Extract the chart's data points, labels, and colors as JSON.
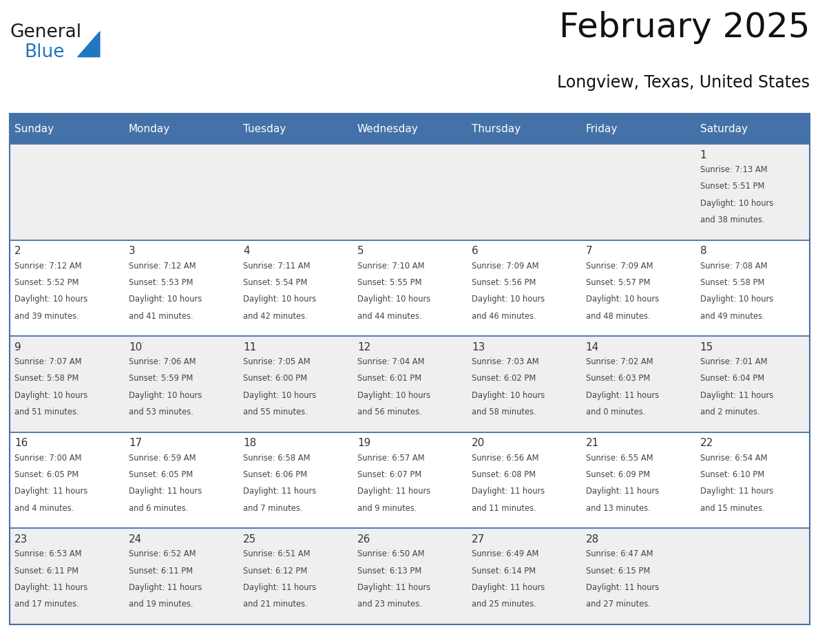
{
  "title": "February 2025",
  "subtitle": "Longview, Texas, United States",
  "header_color": "#4472a8",
  "header_text_color": "#ffffff",
  "day_names": [
    "Sunday",
    "Monday",
    "Tuesday",
    "Wednesday",
    "Thursday",
    "Friday",
    "Saturday"
  ],
  "row0_bg": "#efefef",
  "row1_bg": "#ffffff",
  "row2_bg": "#efefef",
  "row3_bg": "#ffffff",
  "row4_bg": "#efefef",
  "border_color": "#4472a8",
  "text_color": "#444444",
  "day_num_color": "#333333",
  "days": [
    {
      "day": 1,
      "col": 6,
      "row": 0,
      "sunrise": "7:13 AM",
      "sunset": "5:51 PM",
      "daylight_h": "10 hours",
      "daylight_m": "38 minutes."
    },
    {
      "day": 2,
      "col": 0,
      "row": 1,
      "sunrise": "7:12 AM",
      "sunset": "5:52 PM",
      "daylight_h": "10 hours",
      "daylight_m": "39 minutes."
    },
    {
      "day": 3,
      "col": 1,
      "row": 1,
      "sunrise": "7:12 AM",
      "sunset": "5:53 PM",
      "daylight_h": "10 hours",
      "daylight_m": "41 minutes."
    },
    {
      "day": 4,
      "col": 2,
      "row": 1,
      "sunrise": "7:11 AM",
      "sunset": "5:54 PM",
      "daylight_h": "10 hours",
      "daylight_m": "42 minutes."
    },
    {
      "day": 5,
      "col": 3,
      "row": 1,
      "sunrise": "7:10 AM",
      "sunset": "5:55 PM",
      "daylight_h": "10 hours",
      "daylight_m": "44 minutes."
    },
    {
      "day": 6,
      "col": 4,
      "row": 1,
      "sunrise": "7:09 AM",
      "sunset": "5:56 PM",
      "daylight_h": "10 hours",
      "daylight_m": "46 minutes."
    },
    {
      "day": 7,
      "col": 5,
      "row": 1,
      "sunrise": "7:09 AM",
      "sunset": "5:57 PM",
      "daylight_h": "10 hours",
      "daylight_m": "48 minutes."
    },
    {
      "day": 8,
      "col": 6,
      "row": 1,
      "sunrise": "7:08 AM",
      "sunset": "5:58 PM",
      "daylight_h": "10 hours",
      "daylight_m": "49 minutes."
    },
    {
      "day": 9,
      "col": 0,
      "row": 2,
      "sunrise": "7:07 AM",
      "sunset": "5:58 PM",
      "daylight_h": "10 hours",
      "daylight_m": "51 minutes."
    },
    {
      "day": 10,
      "col": 1,
      "row": 2,
      "sunrise": "7:06 AM",
      "sunset": "5:59 PM",
      "daylight_h": "10 hours",
      "daylight_m": "53 minutes."
    },
    {
      "day": 11,
      "col": 2,
      "row": 2,
      "sunrise": "7:05 AM",
      "sunset": "6:00 PM",
      "daylight_h": "10 hours",
      "daylight_m": "55 minutes."
    },
    {
      "day": 12,
      "col": 3,
      "row": 2,
      "sunrise": "7:04 AM",
      "sunset": "6:01 PM",
      "daylight_h": "10 hours",
      "daylight_m": "56 minutes."
    },
    {
      "day": 13,
      "col": 4,
      "row": 2,
      "sunrise": "7:03 AM",
      "sunset": "6:02 PM",
      "daylight_h": "10 hours",
      "daylight_m": "58 minutes."
    },
    {
      "day": 14,
      "col": 5,
      "row": 2,
      "sunrise": "7:02 AM",
      "sunset": "6:03 PM",
      "daylight_h": "11 hours",
      "daylight_m": "0 minutes."
    },
    {
      "day": 15,
      "col": 6,
      "row": 2,
      "sunrise": "7:01 AM",
      "sunset": "6:04 PM",
      "daylight_h": "11 hours",
      "daylight_m": "2 minutes."
    },
    {
      "day": 16,
      "col": 0,
      "row": 3,
      "sunrise": "7:00 AM",
      "sunset": "6:05 PM",
      "daylight_h": "11 hours",
      "daylight_m": "4 minutes."
    },
    {
      "day": 17,
      "col": 1,
      "row": 3,
      "sunrise": "6:59 AM",
      "sunset": "6:05 PM",
      "daylight_h": "11 hours",
      "daylight_m": "6 minutes."
    },
    {
      "day": 18,
      "col": 2,
      "row": 3,
      "sunrise": "6:58 AM",
      "sunset": "6:06 PM",
      "daylight_h": "11 hours",
      "daylight_m": "7 minutes."
    },
    {
      "day": 19,
      "col": 3,
      "row": 3,
      "sunrise": "6:57 AM",
      "sunset": "6:07 PM",
      "daylight_h": "11 hours",
      "daylight_m": "9 minutes."
    },
    {
      "day": 20,
      "col": 4,
      "row": 3,
      "sunrise": "6:56 AM",
      "sunset": "6:08 PM",
      "daylight_h": "11 hours",
      "daylight_m": "11 minutes."
    },
    {
      "day": 21,
      "col": 5,
      "row": 3,
      "sunrise": "6:55 AM",
      "sunset": "6:09 PM",
      "daylight_h": "11 hours",
      "daylight_m": "13 minutes."
    },
    {
      "day": 22,
      "col": 6,
      "row": 3,
      "sunrise": "6:54 AM",
      "sunset": "6:10 PM",
      "daylight_h": "11 hours",
      "daylight_m": "15 minutes."
    },
    {
      "day": 23,
      "col": 0,
      "row": 4,
      "sunrise": "6:53 AM",
      "sunset": "6:11 PM",
      "daylight_h": "11 hours",
      "daylight_m": "17 minutes."
    },
    {
      "day": 24,
      "col": 1,
      "row": 4,
      "sunrise": "6:52 AM",
      "sunset": "6:11 PM",
      "daylight_h": "11 hours",
      "daylight_m": "19 minutes."
    },
    {
      "day": 25,
      "col": 2,
      "row": 4,
      "sunrise": "6:51 AM",
      "sunset": "6:12 PM",
      "daylight_h": "11 hours",
      "daylight_m": "21 minutes."
    },
    {
      "day": 26,
      "col": 3,
      "row": 4,
      "sunrise": "6:50 AM",
      "sunset": "6:13 PM",
      "daylight_h": "11 hours",
      "daylight_m": "23 minutes."
    },
    {
      "day": 27,
      "col": 4,
      "row": 4,
      "sunrise": "6:49 AM",
      "sunset": "6:14 PM",
      "daylight_h": "11 hours",
      "daylight_m": "25 minutes."
    },
    {
      "day": 28,
      "col": 5,
      "row": 4,
      "sunrise": "6:47 AM",
      "sunset": "6:15 PM",
      "daylight_h": "11 hours",
      "daylight_m": "27 minutes."
    }
  ],
  "num_rows": 5,
  "logo_triangle_color": "#2176c0",
  "logo_general_color": "#1a1a1a",
  "logo_blue_color": "#2176c0"
}
